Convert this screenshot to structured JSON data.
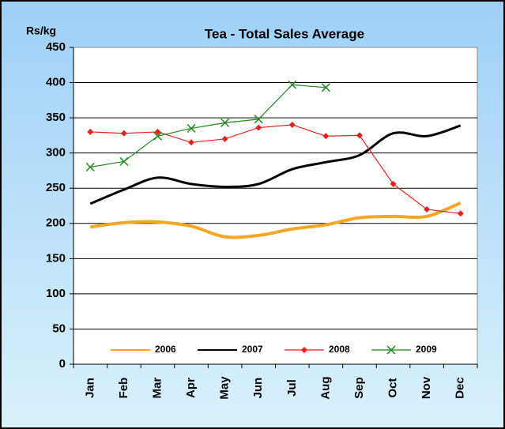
{
  "chart_data": {
    "type": "line",
    "title": "Tea - Total Sales Average",
    "y_label": "Rs/kg",
    "categories": [
      "Jan",
      "Feb",
      "Mar",
      "Apr",
      "May",
      "Jun",
      "Jul",
      "Aug",
      "Sep",
      "Oct",
      "Nov",
      "Dec"
    ],
    "series": [
      {
        "name": "2006",
        "color": "#f5a623",
        "width": 4,
        "smooth": true,
        "marker": "none",
        "values": [
          195,
          201,
          202,
          196,
          181,
          183,
          192,
          198,
          208,
          210,
          210,
          229
        ]
      },
      {
        "name": "2007",
        "color": "#000000",
        "width": 3,
        "smooth": true,
        "marker": "none",
        "values": [
          228,
          248,
          265,
          256,
          252,
          256,
          277,
          287,
          297,
          328,
          324,
          339
        ]
      },
      {
        "name": "2008",
        "color": "#e8201c",
        "width": 1.2,
        "smooth": false,
        "marker": "diamond",
        "values": [
          330,
          328,
          330,
          315,
          320,
          336,
          340,
          324,
          325,
          256,
          220,
          214
        ]
      },
      {
        "name": "2009",
        "color": "#1a8a1a",
        "width": 1.2,
        "smooth": false,
        "marker": "x",
        "values": [
          280,
          288,
          324,
          335,
          343,
          348,
          397,
          393,
          null,
          null,
          null,
          null
        ]
      }
    ],
    "ylim": [
      0,
      450
    ],
    "yticks": [
      0,
      50,
      100,
      150,
      200,
      250,
      300,
      350,
      400,
      450
    ],
    "grid": true,
    "legend": "bottom"
  }
}
